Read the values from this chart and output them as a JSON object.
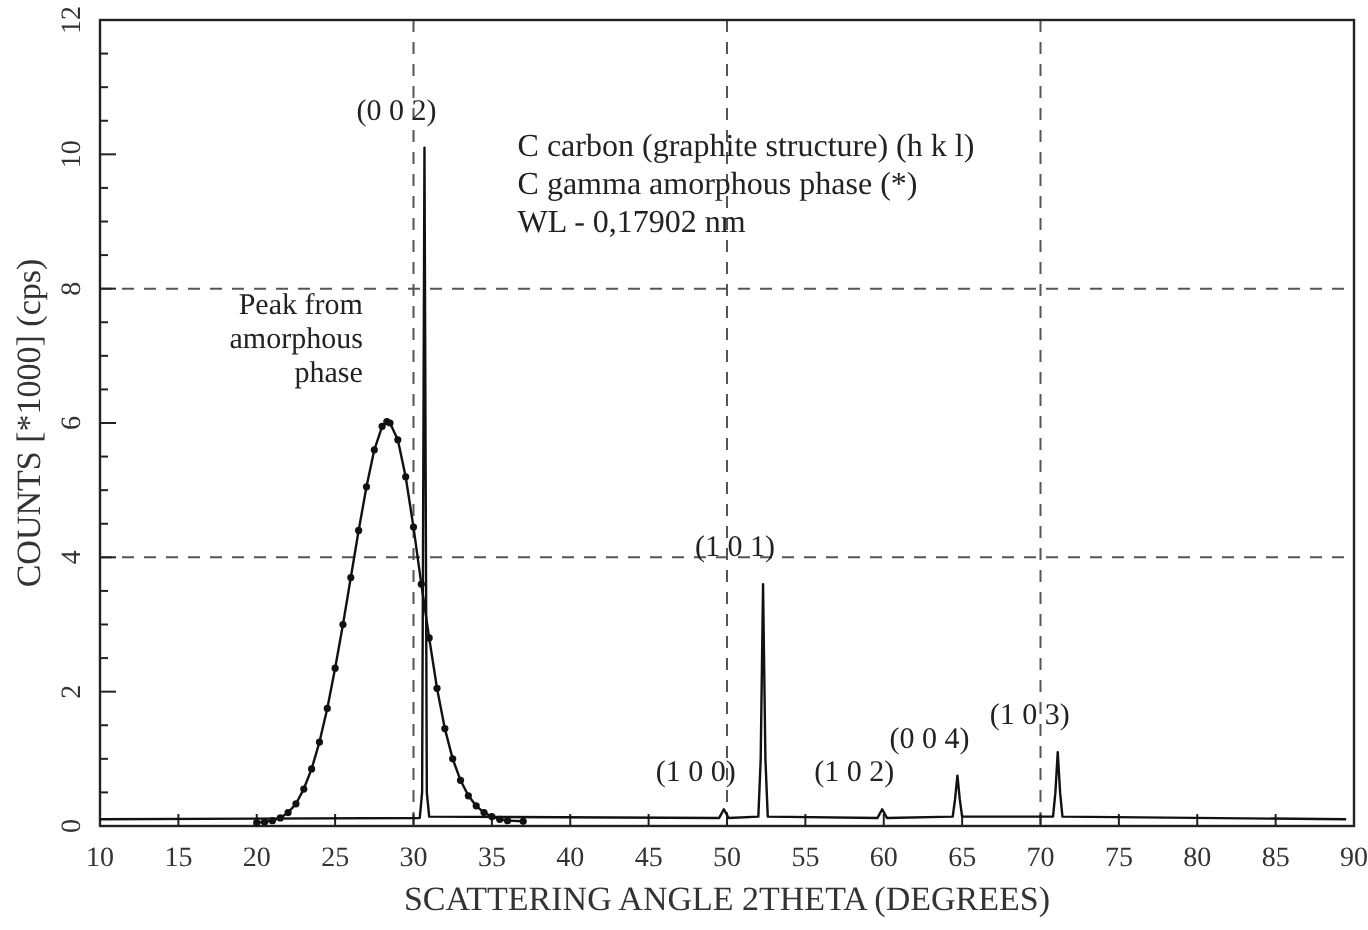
{
  "chart_data": {
    "type": "line",
    "xlabel": "SCATTERING ANGLE 2THETA (DEGREES)",
    "ylabel": "COUNTS [*1000] (cps)",
    "xlim": [
      10,
      90
    ],
    "xticks": [
      10,
      15,
      20,
      25,
      30,
      35,
      40,
      45,
      50,
      55,
      60,
      65,
      70,
      75,
      80,
      85,
      90
    ],
    "ylim": [
      0,
      12
    ],
    "yticks": [
      0,
      {
        "value": 0.5,
        "label": null
      },
      {
        "value": 1,
        "label": null
      },
      {
        "value": 1.5,
        "label": null
      },
      2,
      {
        "value": 2.5,
        "label": null
      },
      {
        "value": 3,
        "label": null
      },
      {
        "value": 3.5,
        "label": null
      },
      4,
      {
        "value": 4.5,
        "label": null
      },
      {
        "value": 5,
        "label": null
      },
      {
        "value": 5.5,
        "label": null
      },
      6,
      {
        "value": 6.5,
        "label": null
      },
      {
        "value": 7,
        "label": null
      },
      {
        "value": 7.5,
        "label": null
      },
      8,
      {
        "value": 8.5,
        "label": null
      },
      {
        "value": 9,
        "label": null
      },
      {
        "value": 9.5,
        "label": null
      },
      10,
      {
        "value": 10.5,
        "label": null
      },
      {
        "value": 11,
        "label": null
      },
      {
        "value": 11.5,
        "label": null
      },
      12
    ],
    "grid": false,
    "series": [
      {
        "color": "#111111",
        "marker": "none",
        "x": [
          10,
          30.4,
          30.55,
          30.7,
          30.85,
          31.0,
          49.5,
          49.8,
          50.1,
          52.0,
          52.15,
          52.3,
          52.45,
          52.6,
          59.6,
          59.9,
          60.2,
          64.4,
          64.55,
          64.7,
          64.85,
          65.0,
          70.8,
          70.95,
          71.1,
          71.25,
          71.4,
          89.5
        ],
        "values": [
          0.1,
          0.12,
          0.5,
          10.1,
          0.5,
          0.14,
          0.12,
          0.25,
          0.12,
          0.14,
          1.0,
          3.6,
          1.0,
          0.14,
          0.12,
          0.25,
          0.12,
          0.14,
          0.4,
          0.75,
          0.4,
          0.14,
          0.14,
          0.5,
          1.1,
          0.5,
          0.14,
          0.1
        ]
      },
      {
        "color": "#111111",
        "marker": "circle",
        "x": [
          20,
          20.5,
          21,
          21.5,
          22,
          22.5,
          23,
          23.5,
          24,
          24.5,
          25,
          25.5,
          26,
          26.5,
          27,
          27.5,
          28,
          28.3,
          28.5,
          29,
          29.5,
          30,
          30.5,
          31,
          31.5,
          32,
          32.5,
          33,
          33.5,
          34,
          34.5,
          35,
          35.5,
          36,
          37
        ],
        "values": [
          0.05,
          0.06,
          0.08,
          0.12,
          0.2,
          0.33,
          0.55,
          0.85,
          1.25,
          1.75,
          2.35,
          3.0,
          3.7,
          4.4,
          5.05,
          5.6,
          5.95,
          6.02,
          6.0,
          5.75,
          5.2,
          4.45,
          3.6,
          2.8,
          2.05,
          1.45,
          1.0,
          0.68,
          0.45,
          0.3,
          0.2,
          0.14,
          0.1,
          0.08,
          0.07
        ]
      }
    ],
    "ref_lines": [
      {
        "axis": "x",
        "value": 30,
        "line_style": "dashed",
        "color": "#555555"
      },
      {
        "axis": "x",
        "value": 50,
        "line_style": "dashed",
        "color": "#555555"
      },
      {
        "axis": "x",
        "value": 70,
        "line_style": "dashed",
        "color": "#555555"
      },
      {
        "axis": "y",
        "value": 4,
        "line_style": "dashed",
        "color": "#555555"
      },
      {
        "axis": "y",
        "value": 8,
        "line_style": "dashed",
        "color": "#555555"
      }
    ],
    "annotations": [
      "C carbon (graphite structure) (h k l)",
      "C gamma amorphous phase (*)",
      "WL - 0,17902 nm",
      {
        "text": "Peak from amorphous phase",
        "x": 28.3,
        "y": 6.02
      },
      {
        "text": "(0 0 2)",
        "x": 30.7,
        "y": 10.1
      },
      {
        "text": "(1 0 1)",
        "x": 52.3,
        "y": 3.6
      },
      {
        "text": "(1 0 0)",
        "x": 49.8,
        "y": 0.25
      },
      {
        "text": "(1 0 2)",
        "x": 59.9,
        "y": 0.25
      },
      {
        "text": "(0 0 4)",
        "x": 64.7,
        "y": 0.75
      },
      {
        "text": "(1 0 3)",
        "x": 71.1,
        "y": 1.1
      }
    ]
  }
}
